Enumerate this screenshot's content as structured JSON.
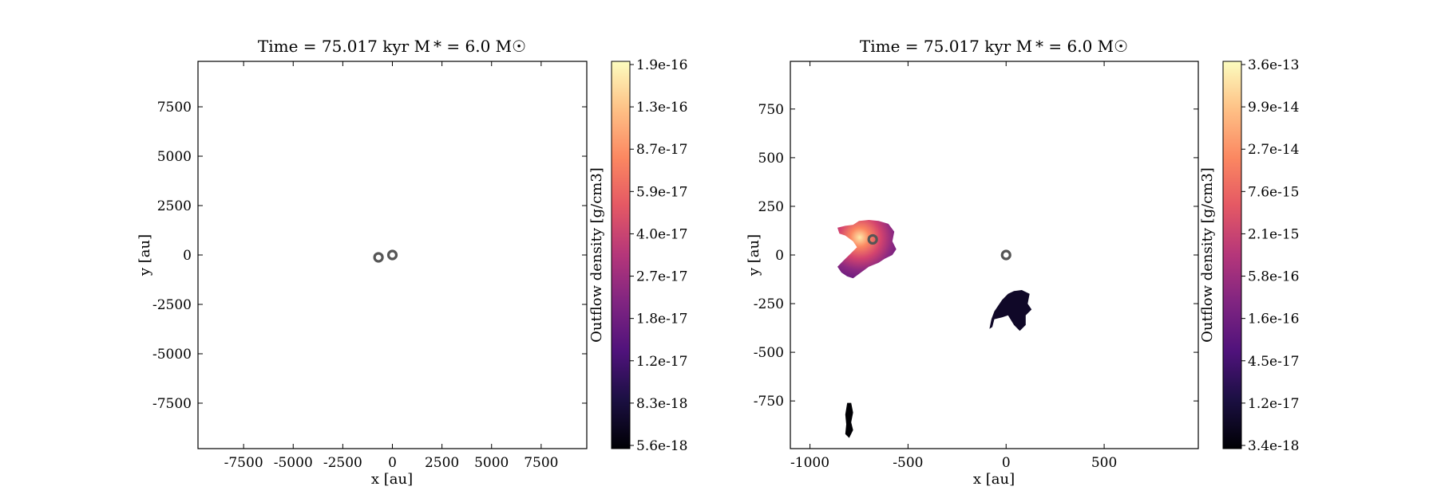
{
  "chart_data": [
    {
      "type": "heatmap",
      "title": "Time = 75.017 kyr    M * = 6.0 M☉",
      "xlabel": "x [au]",
      "ylabel": "y [au]",
      "xlim": [
        -9800,
        9800
      ],
      "ylim": [
        -9800,
        9800
      ],
      "xticks": [
        "-7500",
        "-5000",
        "-2500",
        "0",
        "2500",
        "5000",
        "7500"
      ],
      "xtick_values": [
        -7500,
        -5000,
        -2500,
        0,
        2500,
        5000,
        7500
      ],
      "yticks": [
        "7500",
        "5000",
        "2500",
        "0",
        "-2500",
        "-5000",
        "-7500"
      ],
      "ytick_values": [
        7500,
        5000,
        2500,
        0,
        -2500,
        -5000,
        -7500
      ],
      "colormap": "magma",
      "colorbar": {
        "label": "Outflow density [g/cm3]",
        "ticks": [
          "1.9e-16",
          "1.3e-16",
          "8.7e-17",
          "5.9e-17",
          "4.0e-17",
          "2.7e-17",
          "1.8e-17",
          "1.2e-17",
          "8.3e-18",
          "5.6e-18"
        ],
        "min": 5.6e-18,
        "max": 1.9e-16
      },
      "sinks": [
        {
          "x": -700,
          "y": -120
        },
        {
          "x": 0,
          "y": 0
        }
      ],
      "regions": []
    },
    {
      "type": "heatmap",
      "title": "Time = 75.017 kyr    M * = 6.0 M☉",
      "xlabel": "x [au]",
      "ylabel": "y [au]",
      "xlim": [
        -1100,
        980
      ],
      "ylim": [
        -995,
        995
      ],
      "xticks": [
        "-1000",
        "-500",
        "0",
        "500"
      ],
      "xtick_values": [
        -1000,
        -500,
        0,
        500
      ],
      "yticks": [
        "750",
        "500",
        "250",
        "0",
        "-250",
        "-500",
        "-750"
      ],
      "ytick_values": [
        750,
        500,
        250,
        0,
        -250,
        -500,
        -750
      ],
      "colormap": "magma",
      "colorbar": {
        "label": "Outflow density [g/cm3]",
        "ticks": [
          "3.6e-13",
          "9.9e-14",
          "2.7e-14",
          "7.6e-15",
          "2.1e-15",
          "5.8e-16",
          "1.6e-16",
          "4.5e-17",
          "1.2e-17",
          "3.4e-18"
        ],
        "min": 3.4e-18,
        "max": 3.6e-13
      },
      "sinks": [
        {
          "x": -680,
          "y": 80
        },
        {
          "x": 0,
          "y": 0
        }
      ],
      "regions": [
        {
          "name": "outflow-lobe-upper-left",
          "fill": "gradient",
          "points": [
            [
              -860,
              140
            ],
            [
              -820,
              150
            ],
            [
              -780,
              155
            ],
            [
              -750,
              175
            ],
            [
              -700,
              180
            ],
            [
              -650,
              175
            ],
            [
              -600,
              160
            ],
            [
              -570,
              120
            ],
            [
              -580,
              70
            ],
            [
              -560,
              30
            ],
            [
              -580,
              0
            ],
            [
              -620,
              -20
            ],
            [
              -650,
              -40
            ],
            [
              -700,
              -60
            ],
            [
              -740,
              -90
            ],
            [
              -780,
              -120
            ],
            [
              -810,
              -110
            ],
            [
              -840,
              -90
            ],
            [
              -860,
              -60
            ],
            [
              -830,
              -30
            ],
            [
              -800,
              0
            ],
            [
              -760,
              40
            ],
            [
              -780,
              70
            ],
            [
              -820,
              100
            ],
            [
              -850,
              110
            ]
          ]
        },
        {
          "name": "outflow-lobe-lower-right",
          "color": "#100828",
          "points": [
            [
              -60,
              -290
            ],
            [
              -20,
              -230
            ],
            [
              10,
              -200
            ],
            [
              40,
              -185
            ],
            [
              80,
              -180
            ],
            [
              120,
              -200
            ],
            [
              110,
              -250
            ],
            [
              130,
              -280
            ],
            [
              100,
              -310
            ],
            [
              100,
              -360
            ],
            [
              70,
              -390
            ],
            [
              40,
              -360
            ],
            [
              10,
              -310
            ],
            [
              -20,
              -320
            ],
            [
              -60,
              -330
            ],
            [
              -70,
              -370
            ],
            [
              -85,
              -380
            ],
            [
              -75,
              -330
            ]
          ]
        },
        {
          "name": "outflow-lobe-lower-left",
          "color": "#000004",
          "points": [
            [
              -810,
              -760
            ],
            [
              -790,
              -760
            ],
            [
              -780,
              -810
            ],
            [
              -790,
              -860
            ],
            [
              -780,
              -900
            ],
            [
              -800,
              -940
            ],
            [
              -820,
              -920
            ],
            [
              -815,
              -870
            ],
            [
              -820,
              -820
            ]
          ]
        }
      ]
    }
  ]
}
